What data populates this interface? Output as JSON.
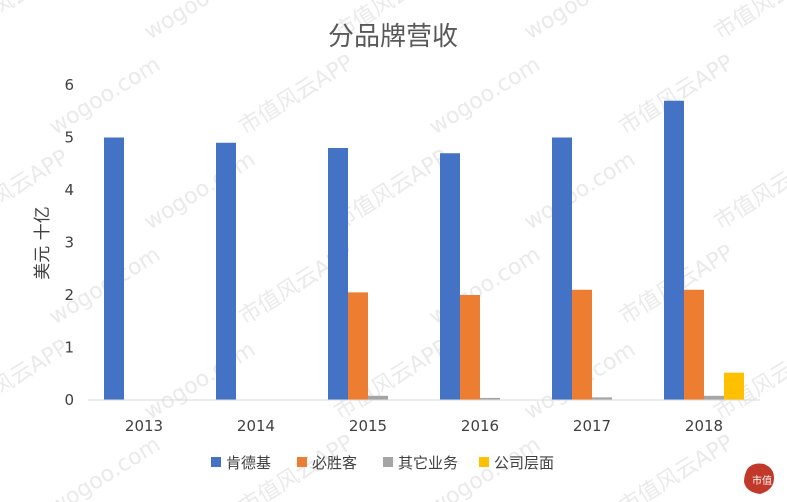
{
  "chart_data": {
    "type": "bar",
    "title": "分品牌营收",
    "ylabel": "美元 十亿",
    "xlabel": "",
    "categories": [
      "2013",
      "2014",
      "2015",
      "2016",
      "2017",
      "2018"
    ],
    "ylim": [
      0,
      6
    ],
    "yticks": [
      0,
      1,
      2,
      3,
      4,
      5,
      6
    ],
    "grid": false,
    "legend": "bottom",
    "series": [
      {
        "name": "肯德基",
        "color": "#4472C4",
        "values": [
          5.0,
          4.9,
          4.8,
          4.7,
          5.0,
          5.7
        ]
      },
      {
        "name": "必胜客",
        "color": "#ED7D31",
        "values": [
          0,
          0,
          2.05,
          2.0,
          2.1,
          2.1
        ]
      },
      {
        "name": "其它业务",
        "color": "#A5A5A5",
        "values": [
          0,
          0,
          0.08,
          0.04,
          0.05,
          0.08
        ]
      },
      {
        "name": "公司层面",
        "color": "#FFC000",
        "values": [
          0,
          0,
          0,
          0,
          0,
          0.52
        ]
      }
    ]
  },
  "watermark": {
    "texts": [
      "市值风云APP",
      "wogoo.com"
    ],
    "logo_text": "市值"
  }
}
